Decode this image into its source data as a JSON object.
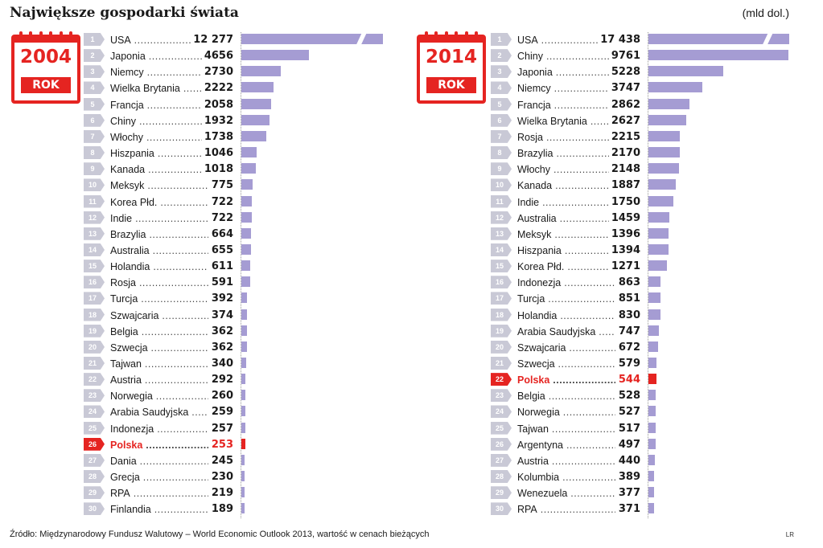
{
  "title": "Największe gospodarki świata",
  "unit": "(mld dol.)",
  "footer": "Źródło: Międzynarodowy Fundusz Walutowy – World Economic Outlook 2013, wartość w cenach bieżących",
  "credit": "LR",
  "colors": {
    "bar": "#a59cd3",
    "highlight": "#e52421",
    "rank_bg": "#c9c9d6"
  },
  "chart_data": [
    {
      "type": "bar",
      "year": "2004",
      "badge_label": "ROK",
      "highlight": "Polska",
      "categories": [
        "USA",
        "Japonia",
        "Niemcy",
        "Wielka Brytania",
        "Francja",
        "Chiny",
        "Włochy",
        "Hiszpania",
        "Kanada",
        "Meksyk",
        "Korea Płd.",
        "Indie",
        "Brazylia",
        "Australia",
        "Holandia",
        "Rosja",
        "Turcja",
        "Szwajcaria",
        "Belgia",
        "Szwecja",
        "Tajwan",
        "Austria",
        "Norwegia",
        "Arabia Saudyjska",
        "Indonezja",
        "Polska",
        "Dania",
        "Grecja",
        "RPA",
        "Finlandia"
      ],
      "ranks": [
        "1",
        "2",
        "3",
        "4",
        "5",
        "6",
        "7",
        "8",
        "9",
        "10",
        "11",
        "12",
        "13",
        "14",
        "15",
        "16",
        "17",
        "18",
        "19",
        "20",
        "21",
        "22",
        "23",
        "24",
        "25",
        "26",
        "27",
        "28",
        "29",
        "30"
      ],
      "labels": [
        "12 277",
        "4656",
        "2730",
        "2222",
        "2058",
        "1932",
        "1738",
        "1046",
        "1018",
        "775",
        "722",
        "722",
        "664",
        "655",
        "611",
        "591",
        "392",
        "374",
        "362",
        "362",
        "340",
        "292",
        "260",
        "259",
        "257",
        "253",
        "245",
        "230",
        "219",
        "189"
      ],
      "values": [
        12277,
        4656,
        2730,
        2222,
        2058,
        1932,
        1738,
        1046,
        1018,
        775,
        722,
        722,
        664,
        655,
        611,
        591,
        392,
        374,
        362,
        362,
        340,
        292,
        260,
        259,
        257,
        253,
        245,
        230,
        219,
        189
      ],
      "broken_axis": true
    },
    {
      "type": "bar",
      "year": "2014",
      "badge_label": "ROK",
      "highlight": "Polska",
      "categories": [
        "USA",
        "Chiny",
        "Japonia",
        "Niemcy",
        "Francja",
        "Wielka Brytania",
        "Rosja",
        "Brazylia",
        "Włochy",
        "Kanada",
        "Indie",
        "Australia",
        "Meksyk",
        "Hiszpania",
        "Korea Płd.",
        "Indonezja",
        "Turcja",
        "Holandia",
        "Arabia Saudyjska",
        "Szwajcaria",
        "Szwecja",
        "Polska",
        "Belgia",
        "Norwegia",
        "Tajwan",
        "Argentyna",
        "Austria",
        "Kolumbia",
        "Wenezuela",
        "RPA"
      ],
      "ranks": [
        "1",
        "2",
        "3",
        "4",
        "5",
        "6",
        "7",
        "8",
        "9",
        "10",
        "11",
        "12",
        "13",
        "14",
        "15",
        "16",
        "17",
        "18",
        "19",
        "20",
        "21",
        "22",
        "23",
        "24",
        "25",
        "26",
        "27",
        "28",
        "29",
        "30"
      ],
      "labels": [
        "17 438",
        "9761",
        "5228",
        "3747",
        "2862",
        "2627",
        "2215",
        "2170",
        "2148",
        "1887",
        "1750",
        "1459",
        "1396",
        "1394",
        "1271",
        "863",
        "851",
        "830",
        "747",
        "672",
        "579",
        "544",
        "528",
        "527",
        "517",
        "497",
        "440",
        "389",
        "377",
        "371"
      ],
      "values": [
        17438,
        9761,
        5228,
        3747,
        2862,
        2627,
        2215,
        2170,
        2148,
        1887,
        1750,
        1459,
        1396,
        1394,
        1271,
        863,
        851,
        830,
        747,
        672,
        579,
        544,
        528,
        527,
        517,
        497,
        440,
        389,
        377,
        371
      ],
      "broken_axis": true
    }
  ]
}
